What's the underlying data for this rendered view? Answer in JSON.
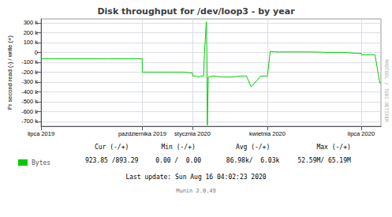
{
  "chart_data": {
    "type": "line",
    "title": "Disk throughput for /dev/loop3 - by year",
    "y_label": "Pr second read (-) / write (+)",
    "x": [
      1561939200,
      1563000000,
      1566000000,
      1569000000,
      1572560000,
      1572566400,
      1572570000,
      1574000000,
      1576000000,
      1577000000,
      1577836800,
      1577850000,
      1578200000,
      1578500000,
      1578700000,
      1579000000,
      1579100000,
      1579200000,
      1579250000,
      1579300000,
      1579350000,
      1579400000,
      1579500000,
      1580000000,
      1581000000,
      1582000000,
      1583000000,
      1583500000,
      1584000000,
      1585000000,
      1585699200,
      1586000000,
      1586500000,
      1587000000,
      1588000000,
      1589000000,
      1590000000,
      1591000000,
      1592000000,
      1593000000,
      1594000000,
      1595000000,
      1595548800,
      1595600000,
      1596000000,
      1596500000,
      1597000000,
      1597500000,
      1597622400
    ],
    "series": [
      {
        "name": "Bytes",
        "color": "#00cc00",
        "values": [
          -65000,
          -65000,
          -65000,
          -65000,
          -65000,
          -65000,
          -200000,
          -200000,
          -200000,
          -200000,
          -210000,
          -240000,
          -240000,
          -250000,
          -240000,
          -240000,
          0,
          160000,
          250000,
          310000,
          0,
          -740000,
          -250000,
          -240000,
          -250000,
          -250000,
          -240000,
          -240000,
          -350000,
          -240000,
          -240000,
          10000,
          5000,
          5000,
          5000,
          5000,
          5000,
          3000,
          0,
          0,
          0,
          -10000,
          -10000,
          -25000,
          -25000,
          -25000,
          -25000,
          -310000,
          -310000
        ]
      }
    ],
    "xlim": [
      1561939200,
      1597622400
    ],
    "xticks": [
      {
        "value": 1561939200,
        "label": "lipca 2019"
      },
      {
        "value": 1572566400,
        "label": "października 2019"
      },
      {
        "value": 1577836800,
        "label": "stycznia 2020"
      },
      {
        "value": 1585699200,
        "label": "kwietnia 2020"
      },
      {
        "value": 1595548800,
        "label": "lipca 2020"
      }
    ],
    "ylim": [
      -750000,
      340000
    ],
    "yticks": [
      {
        "value": 300000,
        "label": "300 k"
      },
      {
        "value": 200000,
        "label": "200 k"
      },
      {
        "value": 100000,
        "label": "100 k"
      },
      0,
      {
        "value": -100000,
        "label": "-100 k"
      },
      {
        "value": -200000,
        "label": "-200 k"
      },
      {
        "value": -300000,
        "label": "-300 k"
      },
      {
        "value": -400000,
        "label": "-400 k"
      },
      {
        "value": -500000,
        "label": "-500 k"
      },
      {
        "value": -600000,
        "label": "-600 k"
      },
      {
        "value": -700000,
        "label": "-700 k"
      }
    ],
    "grid": true,
    "legend": "lower left",
    "annotations": [
      "Cur (-/+)",
      "Min (-/+)",
      "Avg (-/+)",
      "Max (-/+)",
      "923.85 /893.29",
      "0.00 /  0.00",
      "86.98k/  6.03k",
      "52.59M/ 65.19M",
      "Last update: Sun Aug 16 04:02:23 2020",
      "Munin 2.0.49",
      "RRDTOOL / TOBI OETIKER"
    ]
  }
}
